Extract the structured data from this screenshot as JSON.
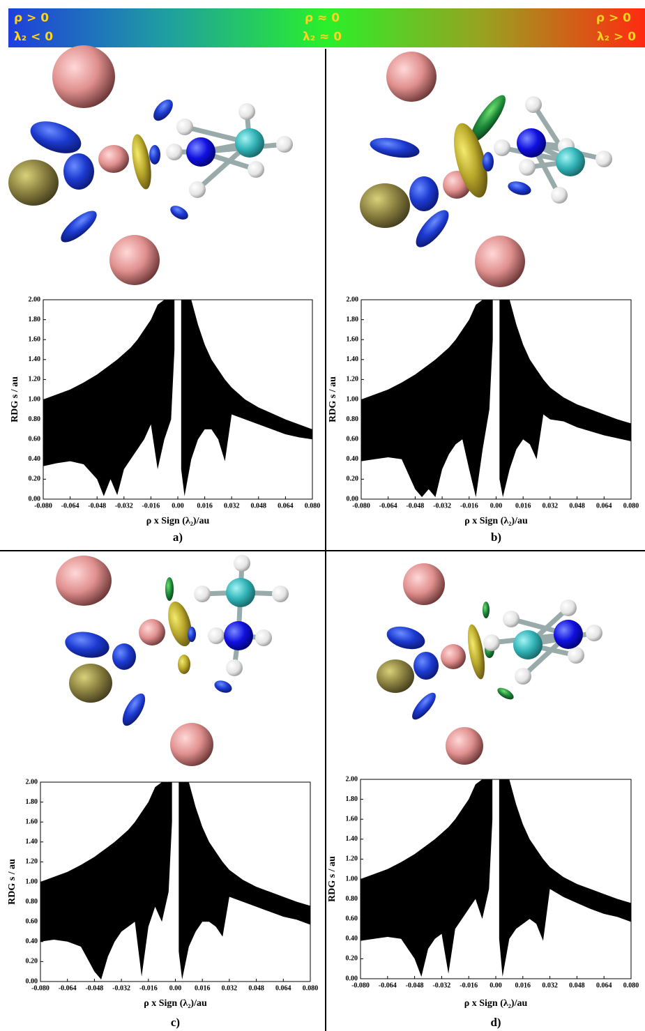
{
  "colorbar": {
    "left_top": "ρ > 0",
    "left_bottom": "λ₂ < 0",
    "mid_top": "ρ ≈ 0",
    "mid_bottom": "λ₂ ≈ 0",
    "right_top": "ρ > 0",
    "right_bottom": "λ₂ > 0"
  },
  "chart_data": [
    {
      "type": "range-area",
      "panel": "a)",
      "xlabel": "ρ x Sign (λ₂)/au",
      "ylabel": "RDG s / au",
      "color": "#000000",
      "xlim": [
        -0.08,
        0.08
      ],
      "ylim": [
        0,
        2
      ],
      "xticks": [
        {
          "value": -0.08,
          "label": "-0.080"
        },
        -0.064,
        -0.048,
        -0.032,
        -0.016,
        {
          "value": 0,
          "label": "0.00"
        },
        0.016,
        0.032,
        0.048,
        0.064,
        {
          "value": 0.08,
          "label": "0.080"
        }
      ],
      "yticks": [
        {
          "value": 0,
          "label": "0.00"
        },
        {
          "value": 0.2,
          "label": "0.20"
        },
        {
          "value": 0.4,
          "label": "0.40"
        },
        {
          "value": 0.6,
          "label": "0.60"
        },
        {
          "value": 0.8,
          "label": "0.80"
        },
        {
          "value": 1,
          "label": "1.00"
        },
        {
          "value": 1.2,
          "label": "1.20"
        },
        {
          "value": 1.4,
          "label": "1.40"
        },
        {
          "value": 1.6,
          "label": "1.60"
        },
        {
          "value": 1.8,
          "label": "1.80"
        },
        {
          "value": 2,
          "label": "2.00"
        }
      ],
      "x": [
        -0.08,
        -0.072,
        -0.064,
        -0.056,
        -0.048,
        -0.044,
        -0.04,
        -0.036,
        -0.032,
        -0.028,
        -0.024,
        -0.02,
        -0.016,
        -0.012,
        -0.008,
        -0.004,
        -0.002,
        0,
        0.002,
        0.004,
        0.008,
        0.012,
        0.016,
        0.02,
        0.024,
        0.028,
        0.032,
        0.04,
        0.048,
        0.056,
        0.064,
        0.072,
        0.08
      ],
      "low": [
        0.33,
        0.36,
        0.38,
        0.35,
        0.2,
        0.03,
        0.2,
        0.04,
        0.3,
        0.4,
        0.5,
        0.6,
        0.75,
        0.3,
        0.6,
        0.8,
        1.5,
        null,
        0.3,
        0.03,
        0.4,
        0.6,
        0.7,
        0.7,
        0.6,
        0.38,
        0.85,
        0.8,
        0.75,
        0.7,
        0.65,
        0.62,
        0.6
      ],
      "high": [
        1.0,
        1.05,
        1.1,
        1.17,
        1.25,
        1.3,
        1.35,
        1.4,
        1.46,
        1.52,
        1.6,
        1.7,
        1.8,
        1.95,
        2,
        2,
        2,
        null,
        2,
        2,
        2,
        1.75,
        1.55,
        1.4,
        1.3,
        1.2,
        1.12,
        1.0,
        0.92,
        0.86,
        0.8,
        0.75,
        0.7
      ]
    },
    {
      "type": "range-area",
      "panel": "b)",
      "xlabel": "ρ x Sign (λ₂)/au",
      "ylabel": "RDG s / au",
      "color": "#000000",
      "xlim": [
        -0.08,
        0.08
      ],
      "ylim": [
        0,
        2
      ],
      "xticks": [
        {
          "value": -0.08,
          "label": "-0.080"
        },
        -0.064,
        -0.048,
        -0.032,
        -0.016,
        {
          "value": 0,
          "label": "0.00"
        },
        0.016,
        0.032,
        0.048,
        0.064,
        {
          "value": 0.08,
          "label": "0.080"
        }
      ],
      "yticks": [
        {
          "value": 0,
          "label": "0.00"
        },
        {
          "value": 0.2,
          "label": "0.20"
        },
        {
          "value": 0.4,
          "label": "0.40"
        },
        {
          "value": 0.6,
          "label": "0.60"
        },
        {
          "value": 0.8,
          "label": "0.80"
        },
        {
          "value": 1,
          "label": "1.00"
        },
        {
          "value": 1.2,
          "label": "1.20"
        },
        {
          "value": 1.4,
          "label": "1.40"
        },
        {
          "value": 1.6,
          "label": "1.60"
        },
        {
          "value": 1.8,
          "label": "1.80"
        },
        {
          "value": 2,
          "label": "2.00"
        }
      ],
      "x": [
        -0.08,
        -0.072,
        -0.064,
        -0.056,
        -0.048,
        -0.044,
        -0.04,
        -0.036,
        -0.032,
        -0.028,
        -0.024,
        -0.02,
        -0.016,
        -0.012,
        -0.008,
        -0.004,
        -0.002,
        0,
        0.002,
        0.004,
        0.008,
        0.012,
        0.016,
        0.02,
        0.024,
        0.028,
        0.032,
        0.04,
        0.048,
        0.056,
        0.064,
        0.072,
        0.08
      ],
      "low": [
        0.38,
        0.4,
        0.42,
        0.4,
        0.1,
        0.02,
        0.1,
        0.02,
        0.3,
        0.45,
        0.55,
        0.6,
        0.3,
        0.02,
        0.5,
        0.9,
        1.6,
        null,
        0.2,
        0.02,
        0.3,
        0.5,
        0.6,
        0.55,
        0.4,
        0.85,
        0.8,
        0.78,
        0.72,
        0.68,
        0.64,
        0.61,
        0.58
      ],
      "high": [
        1.0,
        1.05,
        1.1,
        1.17,
        1.25,
        1.3,
        1.35,
        1.4,
        1.46,
        1.52,
        1.6,
        1.7,
        1.8,
        1.95,
        2,
        2,
        2,
        null,
        2,
        2,
        2,
        1.75,
        1.55,
        1.4,
        1.3,
        1.2,
        1.12,
        1.02,
        0.95,
        0.9,
        0.85,
        0.8,
        0.76
      ]
    },
    {
      "type": "range-area",
      "panel": "c)",
      "xlabel": "ρ x Sign (λ₂)/au",
      "ylabel": "RDG s / au",
      "color": "#000000",
      "xlim": [
        -0.08,
        0.08
      ],
      "ylim": [
        0,
        2
      ],
      "xticks": [
        {
          "value": -0.08,
          "label": "-0.080"
        },
        -0.064,
        -0.048,
        -0.032,
        -0.016,
        {
          "value": 0,
          "label": "0.00"
        },
        0.016,
        0.032,
        0.048,
        0.064,
        {
          "value": 0.08,
          "label": "0.080"
        }
      ],
      "yticks": [
        {
          "value": 0,
          "label": "0.00"
        },
        {
          "value": 0.2,
          "label": "0.20"
        },
        {
          "value": 0.4,
          "label": "0.40"
        },
        {
          "value": 0.6,
          "label": "0.60"
        },
        {
          "value": 0.8,
          "label": "0.80"
        },
        {
          "value": 1,
          "label": "1.00"
        },
        {
          "value": 1.2,
          "label": "1.20"
        },
        {
          "value": 1.4,
          "label": "1.40"
        },
        {
          "value": 1.6,
          "label": "1.60"
        },
        {
          "value": 1.8,
          "label": "1.80"
        },
        {
          "value": 2,
          "label": "2.00"
        }
      ],
      "x": [
        -0.08,
        -0.072,
        -0.064,
        -0.056,
        -0.048,
        -0.044,
        -0.04,
        -0.036,
        -0.032,
        -0.028,
        -0.024,
        -0.02,
        -0.016,
        -0.012,
        -0.008,
        -0.004,
        -0.002,
        0,
        0.002,
        0.004,
        0.008,
        0.012,
        0.016,
        0.02,
        0.024,
        0.028,
        0.032,
        0.04,
        0.048,
        0.056,
        0.064,
        0.072,
        0.08
      ],
      "low": [
        0.4,
        0.42,
        0.4,
        0.35,
        0.1,
        0.02,
        0.25,
        0.4,
        0.5,
        0.55,
        0.6,
        0.05,
        0.55,
        0.75,
        0.6,
        0.9,
        1.6,
        null,
        0.3,
        0.02,
        0.35,
        0.5,
        0.6,
        0.6,
        0.55,
        0.45,
        0.85,
        0.8,
        0.75,
        0.7,
        0.65,
        0.62,
        0.57
      ],
      "high": [
        1.0,
        1.05,
        1.1,
        1.17,
        1.25,
        1.3,
        1.35,
        1.4,
        1.46,
        1.52,
        1.6,
        1.7,
        1.8,
        1.95,
        2,
        2,
        2,
        null,
        2,
        2,
        2,
        1.75,
        1.55,
        1.4,
        1.3,
        1.2,
        1.12,
        1.02,
        0.95,
        0.9,
        0.85,
        0.8,
        0.76
      ]
    },
    {
      "type": "range-area",
      "panel": "d)",
      "xlabel": "ρ x Sign (λ₂)/au",
      "ylabel": "RDG s / au",
      "color": "#000000",
      "xlim": [
        -0.08,
        0.08
      ],
      "ylim": [
        0,
        2
      ],
      "xticks": [
        {
          "value": -0.08,
          "label": "-0.080"
        },
        -0.064,
        -0.048,
        -0.032,
        -0.016,
        {
          "value": 0,
          "label": "0.00"
        },
        0.016,
        0.032,
        0.048,
        0.064,
        {
          "value": 0.08,
          "label": "0.080"
        }
      ],
      "yticks": [
        {
          "value": 0,
          "label": "0.00"
        },
        {
          "value": 0.2,
          "label": "0.20"
        },
        {
          "value": 0.4,
          "label": "0.40"
        },
        {
          "value": 0.6,
          "label": "0.60"
        },
        {
          "value": 0.8,
          "label": "0.80"
        },
        {
          "value": 1,
          "label": "1.00"
        },
        {
          "value": 1.2,
          "label": "1.20"
        },
        {
          "value": 1.4,
          "label": "1.40"
        },
        {
          "value": 1.6,
          "label": "1.60"
        },
        {
          "value": 1.8,
          "label": "1.80"
        },
        {
          "value": 2,
          "label": "2.00"
        }
      ],
      "x": [
        -0.08,
        -0.072,
        -0.064,
        -0.056,
        -0.048,
        -0.044,
        -0.04,
        -0.036,
        -0.032,
        -0.028,
        -0.024,
        -0.02,
        -0.016,
        -0.012,
        -0.008,
        -0.004,
        -0.002,
        0,
        0.002,
        0.004,
        0.008,
        0.012,
        0.016,
        0.02,
        0.024,
        0.028,
        0.032,
        0.04,
        0.048,
        0.056,
        0.064,
        0.072,
        0.08
      ],
      "low": [
        0.38,
        0.4,
        0.42,
        0.4,
        0.2,
        0.02,
        0.3,
        0.4,
        0.45,
        0.05,
        0.5,
        0.6,
        0.7,
        0.8,
        0.6,
        0.9,
        1.6,
        null,
        0.4,
        0.02,
        0.4,
        0.5,
        0.55,
        0.6,
        0.55,
        0.38,
        0.9,
        0.82,
        0.76,
        0.7,
        0.65,
        0.62,
        0.57
      ],
      "high": [
        1.0,
        1.05,
        1.1,
        1.17,
        1.25,
        1.3,
        1.35,
        1.4,
        1.46,
        1.52,
        1.6,
        1.7,
        1.8,
        1.95,
        2,
        2,
        2,
        null,
        2,
        2,
        2,
        1.75,
        1.55,
        1.4,
        1.3,
        1.2,
        1.12,
        1.02,
        0.95,
        0.9,
        0.85,
        0.8,
        0.76
      ]
    }
  ]
}
